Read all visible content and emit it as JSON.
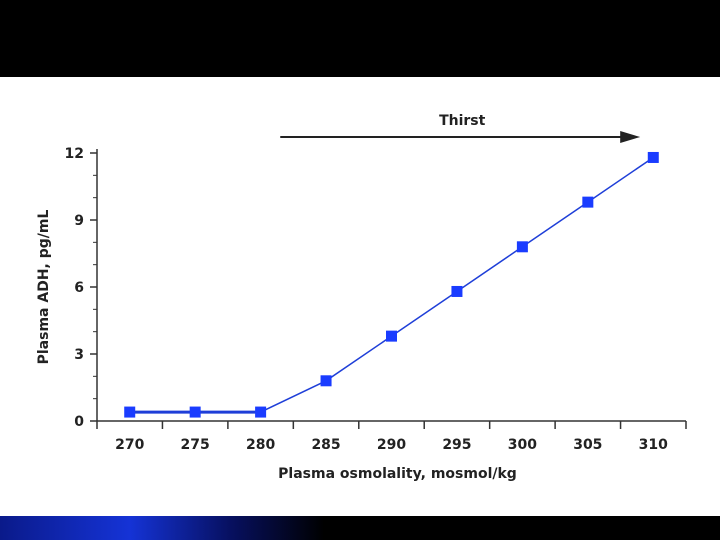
{
  "colors": {
    "series": "#1f3fd8",
    "marker": "#1a3cff",
    "axis": "#333333",
    "arrow": "#222222",
    "top_band": "#000000"
  },
  "chart_data": {
    "type": "line",
    "title": "",
    "xlabel": "Plasma osmolality, mosmol/kg",
    "ylabel": "Plasma ADH, pg/mL",
    "x": [
      270,
      275,
      280,
      285,
      290,
      295,
      300,
      305,
      310
    ],
    "series": [
      {
        "name": "Plasma ADH",
        "values": [
          0.4,
          0.4,
          0.4,
          1.8,
          3.8,
          5.8,
          7.8,
          9.8,
          11.8
        ]
      }
    ],
    "xticks": [
      270,
      275,
      280,
      285,
      290,
      295,
      300,
      305,
      310
    ],
    "yticks": [
      0,
      3,
      6,
      9,
      12
    ],
    "xlim": [
      267.5,
      312.5
    ],
    "ylim": [
      0,
      12
    ],
    "annotation": {
      "label": "Thirst",
      "x_start": 281.5,
      "x_end": 309
    }
  }
}
